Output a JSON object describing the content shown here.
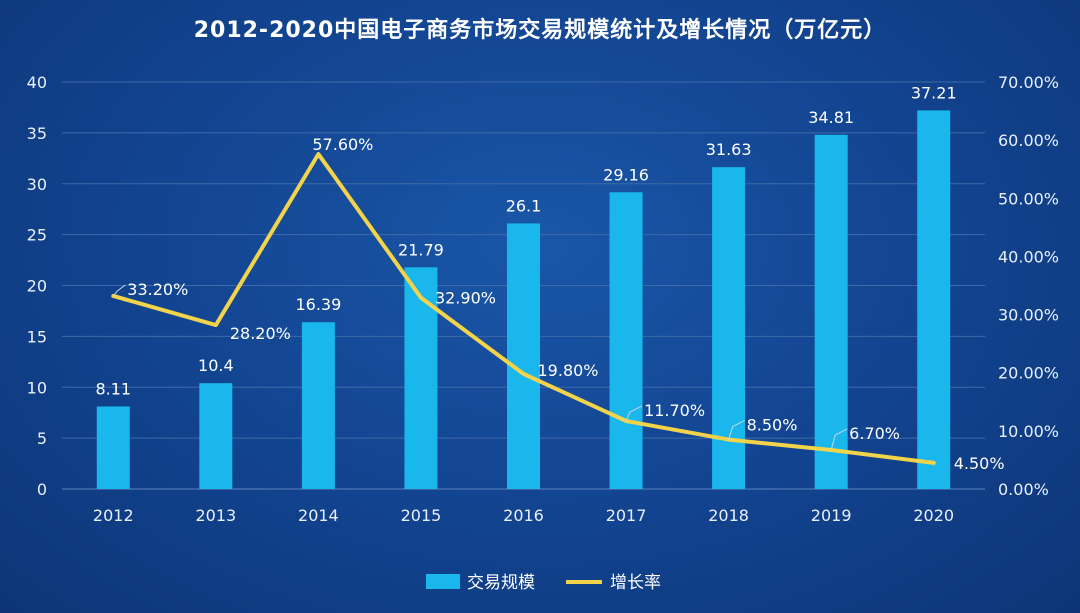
{
  "title": "2012-2020中国电子商务市场交易规模统计及增长情况（万亿元）",
  "colors": {
    "bar": "#1ab7ec",
    "line": "#f3d34a",
    "grid": "#3e6aa8",
    "background": "#134693"
  },
  "chart_data": {
    "type": "bar",
    "title": "2012-2020中国电子商务市场交易规模统计及增长情况（万亿元）",
    "categories": [
      "2012",
      "2013",
      "2014",
      "2015",
      "2016",
      "2017",
      "2018",
      "2019",
      "2020"
    ],
    "series": [
      {
        "name": "交易规模",
        "type": "bar",
        "axis": "left",
        "values": [
          8.11,
          10.4,
          16.39,
          21.79,
          26.1,
          29.16,
          31.63,
          34.81,
          37.21
        ],
        "labels": [
          "8.11",
          "10.4",
          "16.39",
          "21.79",
          "26.1",
          "29.16",
          "31.63",
          "34.81",
          "37.21"
        ]
      },
      {
        "name": "增长率",
        "type": "line",
        "axis": "right",
        "values": [
          33.2,
          28.2,
          57.6,
          32.9,
          19.8,
          11.7,
          8.5,
          6.7,
          4.5
        ],
        "labels": [
          "33.20%",
          "28.20%",
          "57.60%",
          "32.90%",
          "19.80%",
          "11.70%",
          "8.50%",
          "6.70%",
          "4.50%"
        ]
      }
    ],
    "y_left": {
      "range": [
        0,
        40
      ],
      "ticks": [
        "0",
        "5",
        "10",
        "15",
        "20",
        "25",
        "30",
        "35",
        "40"
      ]
    },
    "y_right": {
      "range": [
        0,
        70
      ],
      "ticks": [
        "0.00%",
        "10.00%",
        "20.00%",
        "30.00%",
        "40.00%",
        "50.00%",
        "60.00%",
        "70.00%"
      ]
    },
    "grid": true,
    "legend": "bottom-center"
  }
}
